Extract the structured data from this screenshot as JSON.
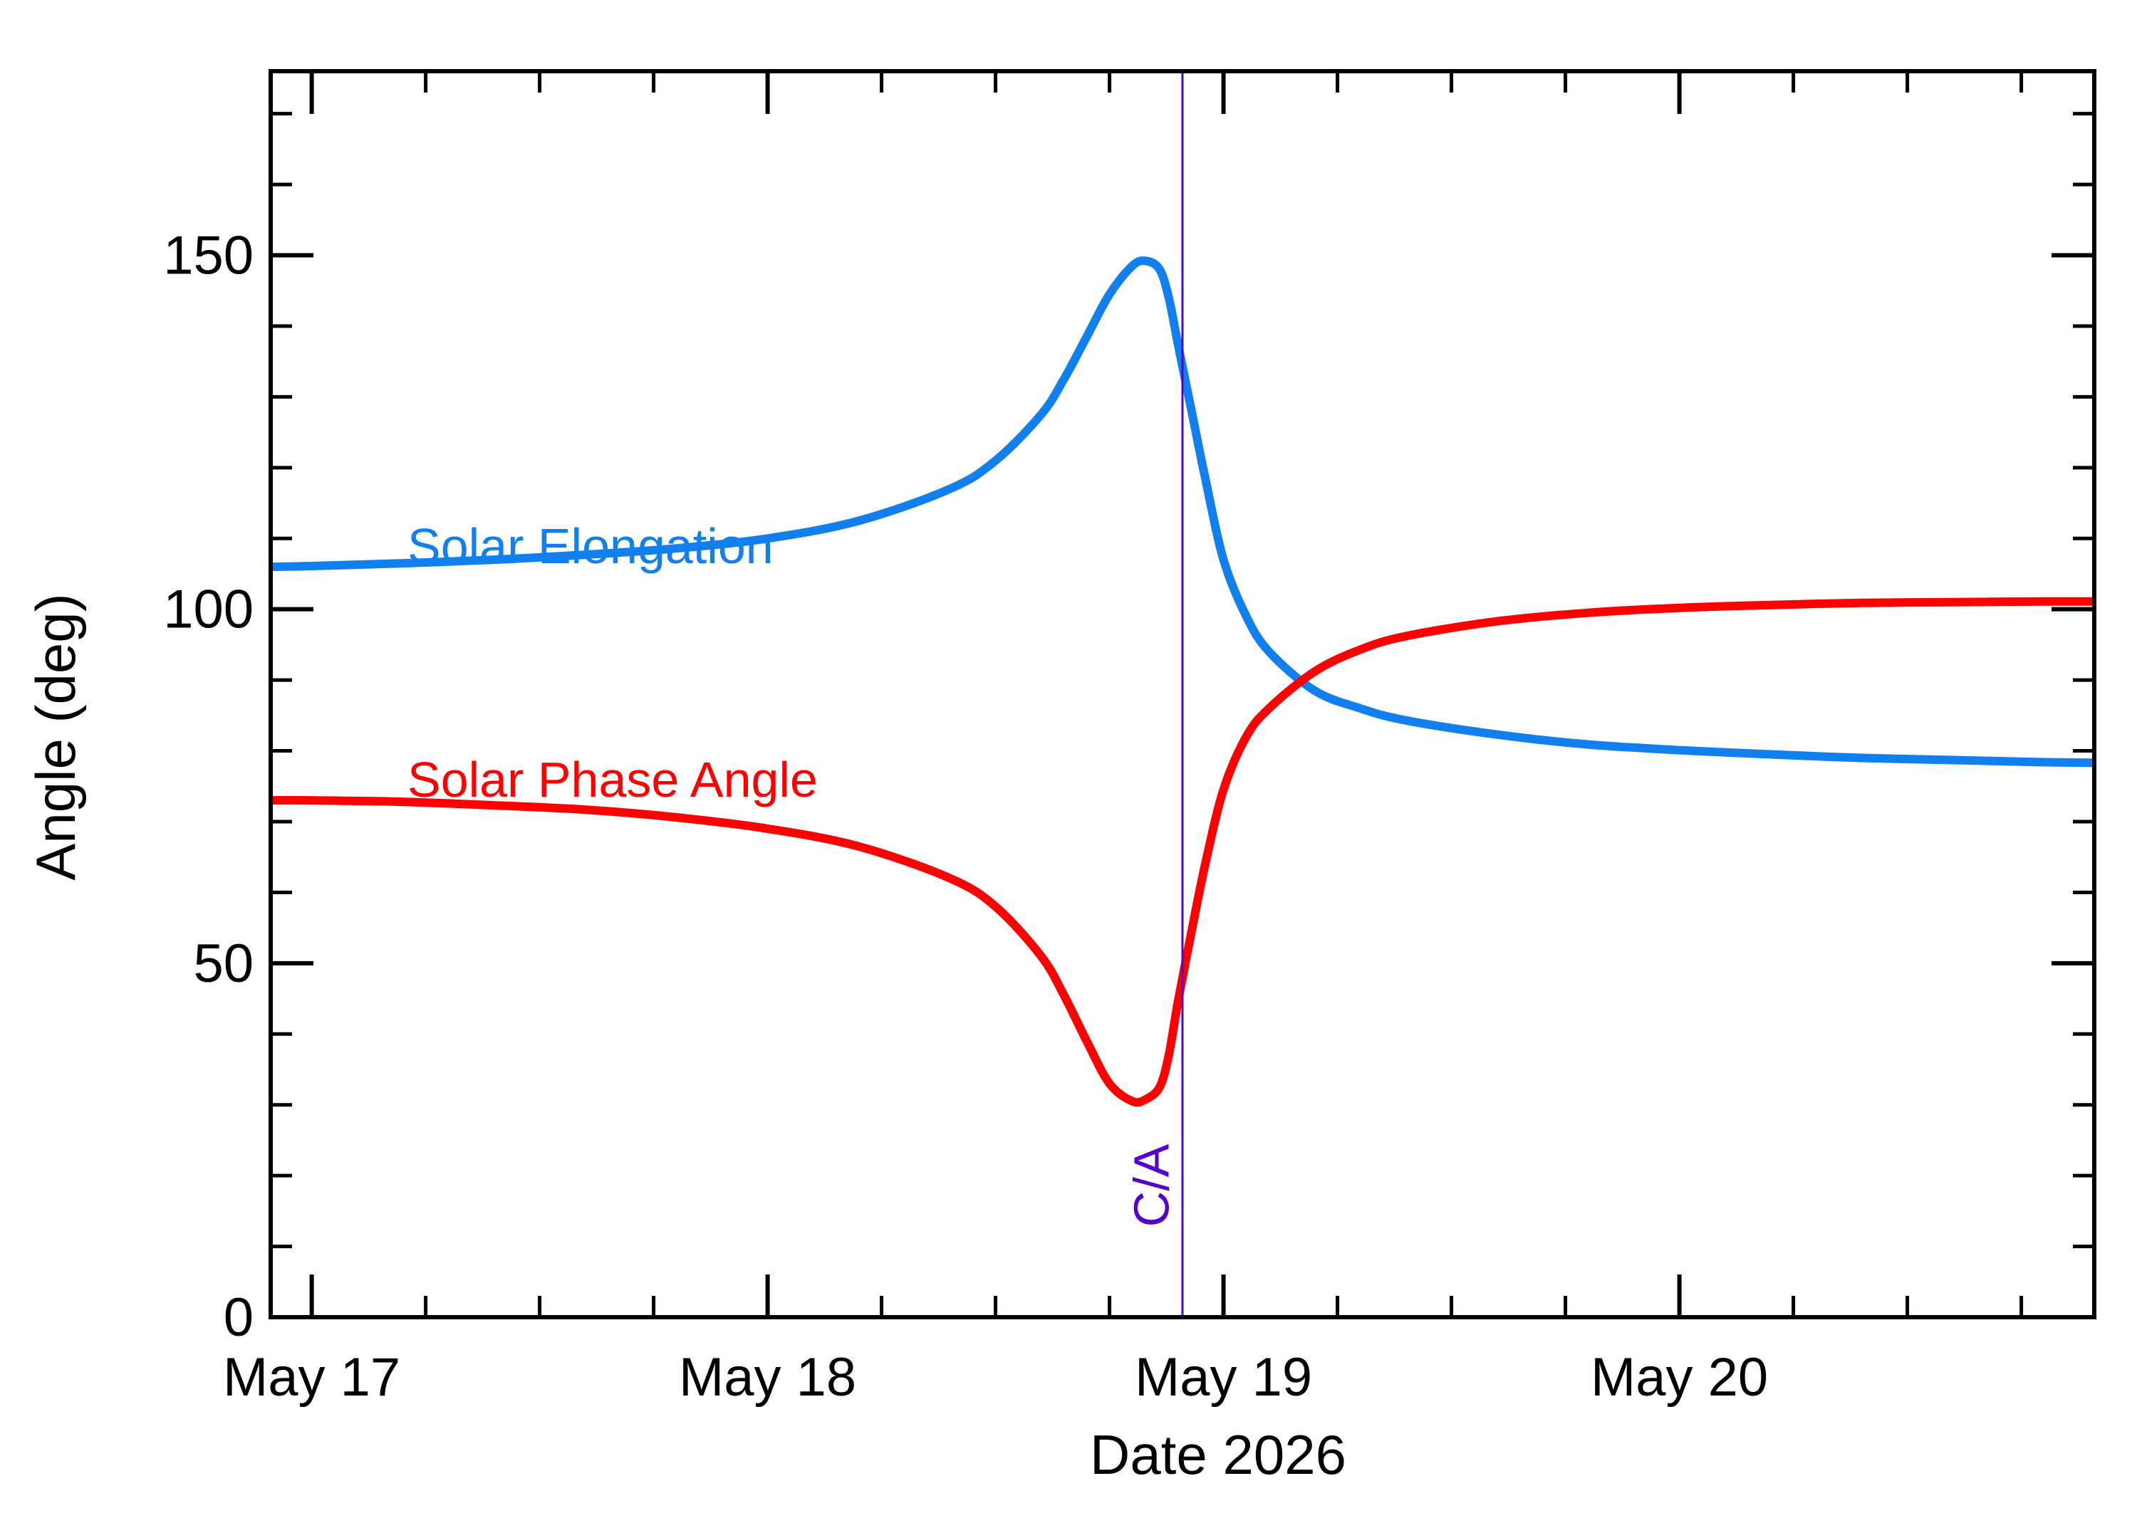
{
  "chart_data": {
    "type": "line",
    "title": "",
    "xlabel": "Date 2026",
    "ylabel": "Angle (deg)",
    "xlim": [
      -0.09,
      3.91
    ],
    "ylim": [
      0,
      176
    ],
    "x_ticks": [
      {
        "value": 0,
        "label": "May 17"
      },
      {
        "value": 1,
        "label": "May 18"
      },
      {
        "value": 2,
        "label": "May 19"
      },
      {
        "value": 3,
        "label": "May 20"
      }
    ],
    "y_ticks": [
      {
        "value": 0,
        "label": "0"
      },
      {
        "value": 50,
        "label": "50"
      },
      {
        "value": 100,
        "label": "100"
      },
      {
        "value": 150,
        "label": "150"
      }
    ],
    "y_minor_step": 10,
    "x_minor_step": 0.25,
    "vline": {
      "x": 1.91,
      "label": "C/A",
      "color": "#5500cc"
    },
    "series": [
      {
        "name": "Solar Elongation",
        "color": "#1180ee",
        "x": [
          -0.09,
          0.0,
          0.2,
          0.4,
          0.6,
          0.8,
          1.0,
          1.2,
          1.4,
          1.5,
          1.6,
          1.65,
          1.7,
          1.75,
          1.8,
          1.83,
          1.86,
          1.88,
          1.9,
          1.93,
          1.96,
          2.0,
          2.05,
          2.1,
          2.2,
          2.3,
          2.4,
          2.6,
          2.8,
          3.0,
          3.2,
          3.4,
          3.6,
          3.8,
          3.91
        ],
        "y": [
          106.0,
          106.1,
          106.5,
          107.0,
          107.7,
          108.6,
          110.0,
          112.5,
          117.0,
          121.0,
          127.5,
          132.5,
          138.5,
          144.5,
          148.5,
          149.2,
          148.0,
          144.0,
          137.5,
          128.0,
          118.5,
          107.0,
          99.0,
          94.0,
          88.5,
          86.0,
          84.3,
          82.3,
          80.9,
          80.1,
          79.5,
          79.0,
          78.7,
          78.4,
          78.3
        ]
      },
      {
        "name": "Solar Phase Angle",
        "color": "#ff0000",
        "x": [
          -0.09,
          0.0,
          0.2,
          0.4,
          0.6,
          0.8,
          1.0,
          1.2,
          1.4,
          1.5,
          1.6,
          1.65,
          1.7,
          1.75,
          1.8,
          1.83,
          1.86,
          1.88,
          1.9,
          1.93,
          1.96,
          2.0,
          2.05,
          2.1,
          2.2,
          2.3,
          2.4,
          2.6,
          2.8,
          3.0,
          3.2,
          3.4,
          3.6,
          3.8,
          3.91
        ],
        "y": [
          73.0,
          73.0,
          72.8,
          72.3,
          71.7,
          70.6,
          69.0,
          66.5,
          62.0,
          58.0,
          51.0,
          45.5,
          39.0,
          33.0,
          30.5,
          30.8,
          32.5,
          37.0,
          44.5,
          54.5,
          64.0,
          74.5,
          82.0,
          86.0,
          91.2,
          94.3,
          96.2,
          98.3,
          99.5,
          100.2,
          100.6,
          100.9,
          101.0,
          101.1,
          101.1
        ]
      }
    ],
    "series_labels": [
      {
        "series": 0,
        "text": "Solar Elongation",
        "x": 0.21,
        "y": 106.5
      },
      {
        "series": 1,
        "text": "Solar Phase Angle",
        "x": 0.21,
        "y": 73.5
      }
    ],
    "grid": false,
    "legend": "inline"
  }
}
